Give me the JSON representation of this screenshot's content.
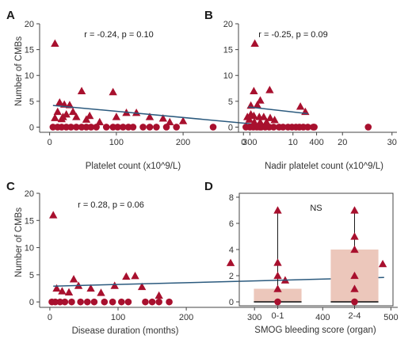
{
  "colors": {
    "marker": "#a8102e",
    "trend": "#2b5a7e",
    "bar": "#ecc7bb",
    "axis": "#444444"
  },
  "chart_data": [
    {
      "panel": "A",
      "type": "scatter",
      "xlabel": "Platelet count (x10^9/L)",
      "ylabel": "Number of CMBs",
      "annotation": "r = -0.24, p = 0.10",
      "xlim": [
        -15,
        410
      ],
      "ylim": [
        -1,
        20
      ],
      "xticks": [
        0,
        100,
        200,
        300,
        400
      ],
      "yticks": [
        0,
        5,
        10,
        15,
        20
      ],
      "trend": [
        [
          5,
          4.2
        ],
        [
          330,
          0.3
        ]
      ],
      "triangles": [
        [
          8,
          16.2
        ],
        [
          15,
          4.8
        ],
        [
          22,
          4.4
        ],
        [
          30,
          4.3
        ],
        [
          12,
          3
        ],
        [
          25,
          2.5
        ],
        [
          35,
          3
        ],
        [
          40,
          2
        ],
        [
          20,
          2
        ],
        [
          18,
          1.6
        ],
        [
          8,
          1.8
        ],
        [
          48,
          7
        ],
        [
          55,
          1.5
        ],
        [
          60,
          2.2
        ],
        [
          75,
          1
        ],
        [
          95,
          6.8
        ],
        [
          100,
          2
        ],
        [
          115,
          2.8
        ],
        [
          130,
          2.8
        ],
        [
          150,
          2
        ],
        [
          170,
          1.7
        ],
        [
          180,
          1
        ],
        [
          200,
          1.2
        ],
        [
          325,
          1
        ]
      ],
      "circles": [
        [
          5,
          0
        ],
        [
          12,
          0
        ],
        [
          18,
          0
        ],
        [
          25,
          0
        ],
        [
          32,
          0
        ],
        [
          40,
          0
        ],
        [
          48,
          0
        ],
        [
          55,
          0
        ],
        [
          62,
          0
        ],
        [
          70,
          0
        ],
        [
          85,
          0
        ],
        [
          95,
          0
        ],
        [
          102,
          0
        ],
        [
          110,
          0
        ],
        [
          118,
          0
        ],
        [
          125,
          0
        ],
        [
          140,
          0
        ],
        [
          150,
          0
        ],
        [
          160,
          0
        ],
        [
          175,
          0
        ],
        [
          190,
          0
        ],
        [
          245,
          0
        ],
        [
          315,
          0
        ],
        [
          395,
          0
        ]
      ]
    },
    {
      "panel": "B",
      "type": "scatter",
      "xlabel": "Nadir platelet count (x10^9/L)",
      "ylabel": "",
      "annotation": "r = -0.25, p = 0.09",
      "xlim": [
        -1,
        31
      ],
      "ylim": [
        -1,
        20
      ],
      "xticks": [
        0,
        10,
        20,
        30
      ],
      "yticks": [
        0,
        5,
        10,
        15,
        20
      ],
      "trend": [
        [
          1,
          3.9
        ],
        [
          13,
          2.6
        ]
      ],
      "triangles": [
        [
          2.3,
          16.2
        ],
        [
          2.1,
          7
        ],
        [
          5.3,
          7.2
        ],
        [
          1.5,
          4.2
        ],
        [
          2.8,
          4.3
        ],
        [
          3.4,
          5.2
        ],
        [
          11.5,
          4
        ],
        [
          12.5,
          3
        ],
        [
          1.5,
          2.5
        ],
        [
          2.1,
          2.2
        ],
        [
          3.2,
          2
        ],
        [
          4.1,
          2
        ],
        [
          5.4,
          1.8
        ],
        [
          1.2,
          1.5
        ],
        [
          2.2,
          1
        ],
        [
          3.4,
          1
        ],
        [
          6.3,
          1.4
        ],
        [
          0.8,
          2
        ]
      ],
      "circles": [
        [
          0.5,
          0
        ],
        [
          1.3,
          0
        ],
        [
          2,
          0
        ],
        [
          2.7,
          0
        ],
        [
          3.6,
          0
        ],
        [
          4.4,
          0
        ],
        [
          5.2,
          0
        ],
        [
          6.1,
          0
        ],
        [
          7.2,
          0
        ],
        [
          8,
          0
        ],
        [
          9,
          0
        ],
        [
          9.8,
          0
        ],
        [
          10.6,
          0
        ],
        [
          11.3,
          0
        ],
        [
          12.1,
          0
        ],
        [
          13,
          0
        ],
        [
          14.3,
          0
        ],
        [
          25.2,
          0
        ]
      ]
    },
    {
      "panel": "C",
      "type": "scatter",
      "xlabel": "Disease duration (months)",
      "ylabel": "Number of CMBs",
      "annotation": "r = 0.28, p = 0.06",
      "xlim": [
        -15,
        510
      ],
      "ylim": [
        -1,
        20
      ],
      "xticks": [
        0,
        100,
        200,
        300,
        400,
        500
      ],
      "yticks": [
        0,
        5,
        10,
        15,
        20
      ],
      "trend": [
        [
          5,
          2.9
        ],
        [
          490,
          4.5
        ]
      ],
      "triangles": [
        [
          5,
          16
        ],
        [
          35,
          4.2
        ],
        [
          10,
          2.5
        ],
        [
          18,
          2
        ],
        [
          28,
          1.8
        ],
        [
          42,
          3
        ],
        [
          60,
          2.5
        ],
        [
          75,
          1.7
        ],
        [
          95,
          3
        ],
        [
          112,
          4.7
        ],
        [
          125,
          4.8
        ],
        [
          135,
          2.8
        ],
        [
          160,
          1.2
        ],
        [
          265,
          7.2
        ],
        [
          345,
          4
        ],
        [
          488,
          7
        ]
      ],
      "circles": [
        [
          3,
          0
        ],
        [
          8,
          0
        ],
        [
          15,
          0
        ],
        [
          22,
          0
        ],
        [
          32,
          0
        ],
        [
          45,
          0
        ],
        [
          55,
          0
        ],
        [
          65,
          0
        ],
        [
          80,
          0
        ],
        [
          92,
          0
        ],
        [
          105,
          0
        ],
        [
          115,
          0
        ],
        [
          140,
          0
        ],
        [
          150,
          0
        ],
        [
          160,
          0
        ],
        [
          175,
          0
        ]
      ]
    },
    {
      "panel": "D",
      "type": "bar",
      "xlabel": "SMOG bleeding score (organ)",
      "ylabel": "",
      "annotation": "NS",
      "categories": [
        "0-1",
        "2-4"
      ],
      "values": [
        1,
        4
      ],
      "medians": [
        0,
        0
      ],
      "whisker_top": [
        7,
        7
      ],
      "ylim": [
        -0.3,
        8.3
      ],
      "yticks": [
        0,
        2,
        4,
        6,
        8
      ],
      "triangles": [
        [
          0,
          7
        ],
        [
          0,
          3
        ],
        [
          0,
          1
        ],
        [
          0,
          2
        ],
        [
          1,
          7
        ],
        [
          1,
          5
        ],
        [
          1,
          4
        ],
        [
          1,
          2
        ],
        [
          1,
          1
        ]
      ],
      "circles": [
        [
          0,
          0
        ],
        [
          1,
          0
        ]
      ]
    }
  ]
}
